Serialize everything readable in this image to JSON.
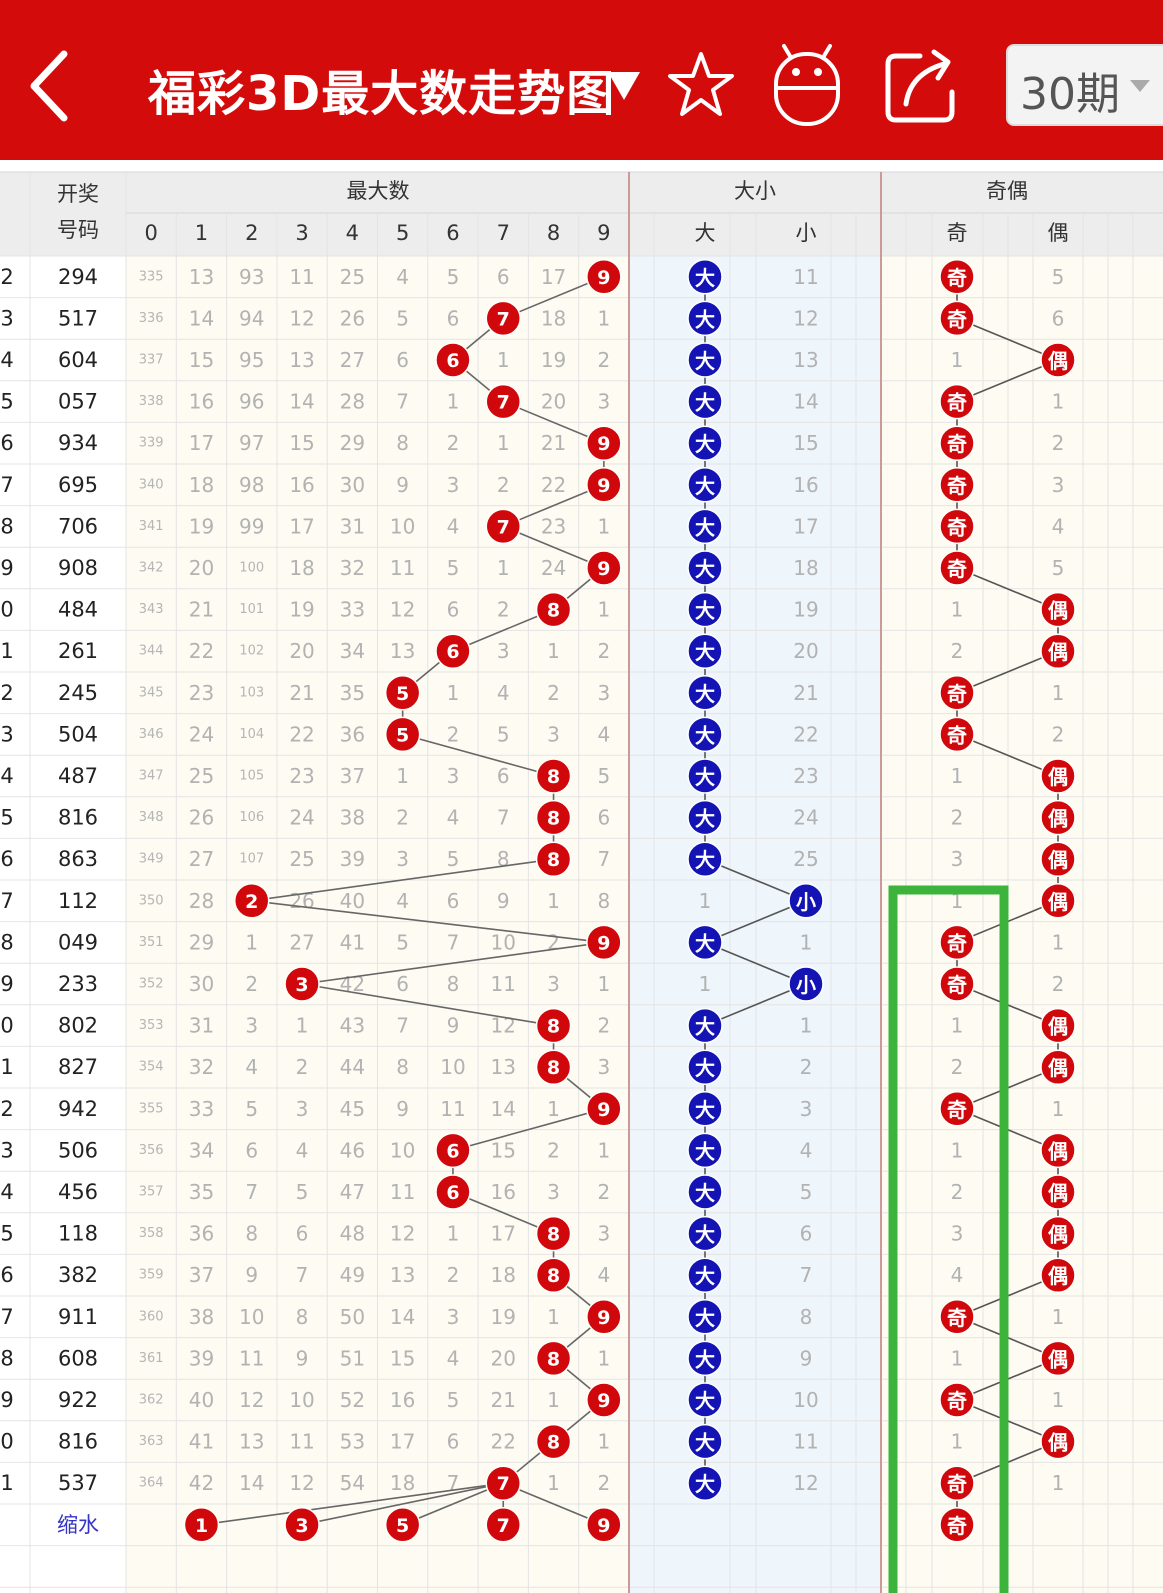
{
  "header": {
    "title": "福彩3D最大数走势图",
    "period_option": "30期",
    "icons": [
      "back-icon",
      "dropdown-arrow-icon",
      "star-icon",
      "robot-icon",
      "share-icon"
    ]
  },
  "table": {
    "col_headers": {
      "draw": [
        "开奖",
        "号码"
      ],
      "max_group": "最大数",
      "size_group": "大小",
      "parity_group": "奇偶",
      "digits": [
        "0",
        "1",
        "2",
        "3",
        "4",
        "5",
        "6",
        "7",
        "8",
        "9"
      ],
      "size": [
        "大",
        "小"
      ],
      "parity": [
        "奇",
        "偶"
      ]
    },
    "shrink_label": "缩水",
    "shrink_max": [
      "1",
      "3",
      "5",
      "7",
      "9"
    ],
    "shrink_parity": "奇",
    "labels": {
      "big": "大",
      "small": "小",
      "odd": "奇",
      "even": "偶"
    },
    "rows": [
      {
        "p": "2",
        "draw": "294",
        "max": 9,
        "size": "big",
        "parity": "odd",
        "miss": [
          "335",
          "13",
          "93",
          "11",
          "25",
          "4",
          "5",
          "6",
          "17"
        ],
        "size_miss": "11",
        "parity_miss": "5"
      },
      {
        "p": "3",
        "draw": "517",
        "max": 7,
        "size": "big",
        "parity": "odd",
        "miss": [
          "336",
          "14",
          "94",
          "12",
          "26",
          "5",
          "6",
          "18",
          "1"
        ],
        "size_miss": "12",
        "parity_miss": "6"
      },
      {
        "p": "4",
        "draw": "604",
        "max": 6,
        "size": "big",
        "parity": "even",
        "miss": [
          "337",
          "15",
          "95",
          "13",
          "27",
          "6",
          "1",
          "19",
          "2"
        ],
        "size_miss": "13",
        "parity_miss": "1"
      },
      {
        "p": "5",
        "draw": "057",
        "max": 7,
        "size": "big",
        "parity": "odd",
        "miss": [
          "338",
          "16",
          "96",
          "14",
          "28",
          "7",
          "1",
          "20",
          "3"
        ],
        "size_miss": "14",
        "parity_miss": "1"
      },
      {
        "p": "6",
        "draw": "934",
        "max": 9,
        "size": "big",
        "parity": "odd",
        "miss": [
          "339",
          "17",
          "97",
          "15",
          "29",
          "8",
          "2",
          "1",
          "21"
        ],
        "size_miss": "15",
        "parity_miss": "2"
      },
      {
        "p": "7",
        "draw": "695",
        "max": 9,
        "size": "big",
        "parity": "odd",
        "miss": [
          "340",
          "18",
          "98",
          "16",
          "30",
          "9",
          "3",
          "2",
          "22"
        ],
        "size_miss": "16",
        "parity_miss": "3"
      },
      {
        "p": "8",
        "draw": "706",
        "max": 7,
        "size": "big",
        "parity": "odd",
        "miss": [
          "341",
          "19",
          "99",
          "17",
          "31",
          "10",
          "4",
          "23",
          "1"
        ],
        "size_miss": "17",
        "parity_miss": "4"
      },
      {
        "p": "9",
        "draw": "908",
        "max": 9,
        "size": "big",
        "parity": "odd",
        "miss": [
          "342",
          "20",
          "100",
          "18",
          "32",
          "11",
          "5",
          "1",
          "24"
        ],
        "size_miss": "18",
        "parity_miss": "5"
      },
      {
        "p": "0",
        "draw": "484",
        "max": 8,
        "size": "big",
        "parity": "even",
        "miss": [
          "343",
          "21",
          "101",
          "19",
          "33",
          "12",
          "6",
          "2",
          "1"
        ],
        "size_miss": "19",
        "parity_miss": "1"
      },
      {
        "p": "1",
        "draw": "261",
        "max": 6,
        "size": "big",
        "parity": "even",
        "miss": [
          "344",
          "22",
          "102",
          "20",
          "34",
          "13",
          "3",
          "1",
          "2"
        ],
        "size_miss": "20",
        "parity_miss": "2"
      },
      {
        "p": "2",
        "draw": "245",
        "max": 5,
        "size": "big",
        "parity": "odd",
        "miss": [
          "345",
          "23",
          "103",
          "21",
          "35",
          "1",
          "4",
          "2",
          "3"
        ],
        "size_miss": "21",
        "parity_miss": "1"
      },
      {
        "p": "3",
        "draw": "504",
        "max": 5,
        "size": "big",
        "parity": "odd",
        "miss": [
          "346",
          "24",
          "104",
          "22",
          "36",
          "2",
          "5",
          "3",
          "4"
        ],
        "size_miss": "22",
        "parity_miss": "2"
      },
      {
        "p": "4",
        "draw": "487",
        "max": 8,
        "size": "big",
        "parity": "even",
        "miss": [
          "347",
          "25",
          "105",
          "23",
          "37",
          "1",
          "3",
          "6",
          "5"
        ],
        "size_miss": "23",
        "parity_miss": "1"
      },
      {
        "p": "5",
        "draw": "816",
        "max": 8,
        "size": "big",
        "parity": "even",
        "miss": [
          "348",
          "26",
          "106",
          "24",
          "38",
          "2",
          "4",
          "7",
          "6"
        ],
        "size_miss": "24",
        "parity_miss": "2"
      },
      {
        "p": "6",
        "draw": "863",
        "max": 8,
        "size": "big",
        "parity": "even",
        "miss": [
          "349",
          "27",
          "107",
          "25",
          "39",
          "3",
          "5",
          "8",
          "7"
        ],
        "size_miss": "25",
        "parity_miss": "3"
      },
      {
        "p": "7",
        "draw": "112",
        "max": 2,
        "size": "small",
        "parity": "even",
        "miss": [
          "350",
          "28",
          "26",
          "40",
          "4",
          "6",
          "9",
          "1",
          "8"
        ],
        "size_miss": "1",
        "parity_miss": "1"
      },
      {
        "p": "8",
        "draw": "049",
        "max": 9,
        "size": "big",
        "parity": "odd",
        "miss": [
          "351",
          "29",
          "1",
          "27",
          "41",
          "5",
          "7",
          "10",
          "2"
        ],
        "size_miss": "1",
        "parity_miss": "1"
      },
      {
        "p": "9",
        "draw": "233",
        "max": 3,
        "size": "small",
        "parity": "odd",
        "miss": [
          "352",
          "30",
          "2",
          "42",
          "6",
          "8",
          "11",
          "3",
          "1"
        ],
        "size_miss": "1",
        "parity_miss": "2"
      },
      {
        "p": "0",
        "draw": "802",
        "max": 8,
        "size": "big",
        "parity": "even",
        "miss": [
          "353",
          "31",
          "3",
          "1",
          "43",
          "7",
          "9",
          "12",
          "2"
        ],
        "size_miss": "1",
        "parity_miss": "1"
      },
      {
        "p": "1",
        "draw": "827",
        "max": 8,
        "size": "big",
        "parity": "even",
        "miss": [
          "354",
          "32",
          "4",
          "2",
          "44",
          "8",
          "10",
          "13",
          "3"
        ],
        "size_miss": "2",
        "parity_miss": "2"
      },
      {
        "p": "2",
        "draw": "942",
        "max": 9,
        "size": "big",
        "parity": "odd",
        "miss": [
          "355",
          "33",
          "5",
          "3",
          "45",
          "9",
          "11",
          "14",
          "1"
        ],
        "size_miss": "3",
        "parity_miss": "1"
      },
      {
        "p": "3",
        "draw": "506",
        "max": 6,
        "size": "big",
        "parity": "even",
        "miss": [
          "356",
          "34",
          "6",
          "4",
          "46",
          "10",
          "15",
          "2",
          "1"
        ],
        "size_miss": "4",
        "parity_miss": "1"
      },
      {
        "p": "4",
        "draw": "456",
        "max": 6,
        "size": "big",
        "parity": "even",
        "miss": [
          "357",
          "35",
          "7",
          "5",
          "47",
          "11",
          "16",
          "3",
          "2"
        ],
        "size_miss": "5",
        "parity_miss": "2"
      },
      {
        "p": "5",
        "draw": "118",
        "max": 8,
        "size": "big",
        "parity": "even",
        "miss": [
          "358",
          "36",
          "8",
          "6",
          "48",
          "12",
          "1",
          "17",
          "3"
        ],
        "size_miss": "6",
        "parity_miss": "3"
      },
      {
        "p": "6",
        "draw": "382",
        "max": 8,
        "size": "big",
        "parity": "even",
        "miss": [
          "359",
          "37",
          "9",
          "7",
          "49",
          "13",
          "2",
          "18",
          "4"
        ],
        "size_miss": "7",
        "parity_miss": "4"
      },
      {
        "p": "7",
        "draw": "911",
        "max": 9,
        "size": "big",
        "parity": "odd",
        "miss": [
          "360",
          "38",
          "10",
          "8",
          "50",
          "14",
          "3",
          "19",
          "1"
        ],
        "size_miss": "8",
        "parity_miss": "1"
      },
      {
        "p": "8",
        "draw": "608",
        "max": 8,
        "size": "big",
        "parity": "even",
        "miss": [
          "361",
          "39",
          "11",
          "9",
          "51",
          "15",
          "4",
          "20",
          "1"
        ],
        "size_miss": "9",
        "parity_miss": "1"
      },
      {
        "p": "9",
        "draw": "922",
        "max": 9,
        "size": "big",
        "parity": "odd",
        "miss": [
          "362",
          "40",
          "12",
          "10",
          "52",
          "16",
          "5",
          "21",
          "1"
        ],
        "size_miss": "10",
        "parity_miss": "1"
      },
      {
        "p": "0",
        "draw": "816",
        "max": 8,
        "size": "big",
        "parity": "even",
        "miss": [
          "363",
          "41",
          "13",
          "11",
          "53",
          "17",
          "6",
          "22",
          "1"
        ],
        "size_miss": "11",
        "parity_miss": "1"
      },
      {
        "p": "1",
        "draw": "537",
        "max": 7,
        "size": "big",
        "parity": "odd",
        "miss": [
          "364",
          "42",
          "14",
          "12",
          "54",
          "18",
          "7",
          "1",
          "2"
        ],
        "size_miss": "12",
        "parity_miss": "1"
      }
    ]
  },
  "highlight": {
    "color": "#3cb43c",
    "first_row": 15
  },
  "colors": {
    "header_bg": "#d30b0b",
    "ball_red": "#d0080b",
    "ball_blue": "#1414b4"
  }
}
